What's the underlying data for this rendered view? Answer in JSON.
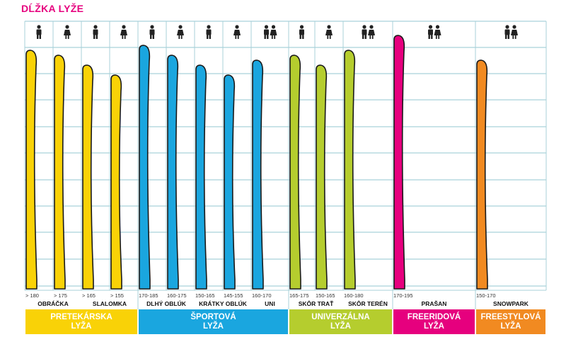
{
  "title": "DĹŽKA LYŽE",
  "colors": {
    "title": "#e6007e",
    "grid": "#a9d2d9",
    "pretekarska": "#f9d207",
    "sportova": "#1aa6df",
    "univerzalna": "#b5cd2e",
    "freeridova": "#e6007e",
    "freestylova": "#f18a21"
  },
  "chart_data": {
    "type": "bar",
    "title": "DĹŽKA LYŽE",
    "units": "cm",
    "categories": [
      {
        "name": "PRETEKÁRSKA\nLYŽA",
        "color": "#f9d207"
      },
      {
        "name": "ŠPORTOVÁ\nLYŽA",
        "color": "#1aa6df"
      },
      {
        "name": "UNIVERZÁLNA\nLYŽA",
        "color": "#b5cd2e"
      },
      {
        "name": "FREERIDOVÁ\nLYŽA",
        "color": "#e6007e"
      },
      {
        "name": "FREESTYLOVÁ\nLYŽA",
        "color": "#f18a21"
      }
    ],
    "subgroups": [
      {
        "label": "OBRÁČKA"
      },
      {
        "label": "SLALOMKA"
      },
      {
        "label": "DLHÝ OBLÚK"
      },
      {
        "label": "KRÁTKY OBLÚK"
      },
      {
        "label": "UNI"
      },
      {
        "label": "SKÔR TRAŤ"
      },
      {
        "label": "SKÔR TERÉN"
      },
      {
        "label": "PRAŠAN"
      },
      {
        "label": "SNOWPARK"
      }
    ],
    "skis": [
      {
        "range": "> 180",
        "gender": "male",
        "category": 0,
        "value": 180
      },
      {
        "range": "> 175",
        "gender": "female",
        "category": 0,
        "value": 175
      },
      {
        "range": "> 165",
        "gender": "male",
        "category": 0,
        "value": 165
      },
      {
        "range": "> 155",
        "gender": "female",
        "category": 0,
        "value": 155
      },
      {
        "range": "170-185",
        "gender": "male",
        "category": 1,
        "value": 185
      },
      {
        "range": "160-175",
        "gender": "female",
        "category": 1,
        "value": 175
      },
      {
        "range": "150-165",
        "gender": "male",
        "category": 1,
        "value": 165
      },
      {
        "range": "145-155",
        "gender": "female",
        "category": 1,
        "value": 155
      },
      {
        "range": "160-170",
        "gender": "unisex",
        "category": 1,
        "value": 170
      },
      {
        "range": "165-175",
        "gender": "male",
        "category": 2,
        "value": 175
      },
      {
        "range": "150-165",
        "gender": "female",
        "category": 2,
        "value": 165
      },
      {
        "range": "160-180",
        "gender": "unisex",
        "category": 2,
        "value": 180
      },
      {
        "range": "170-195",
        "gender": "unisex",
        "category": 3,
        "value": 195
      },
      {
        "range": "150-170",
        "gender": "unisex",
        "category": 4,
        "value": 170
      }
    ]
  }
}
